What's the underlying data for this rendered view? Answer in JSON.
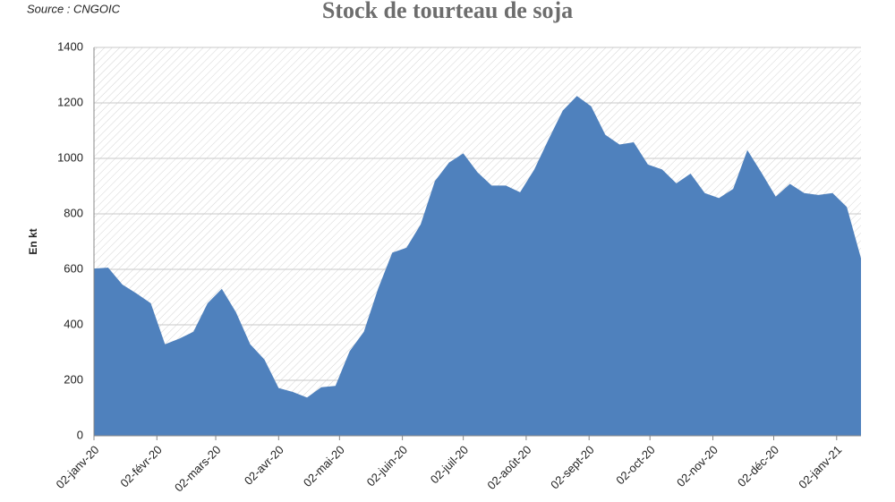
{
  "chart_data": {
    "type": "area",
    "title": "Stock de tourteau de soja",
    "source": "Source : CNGOIC",
    "y_label": "En kt",
    "x": [
      0,
      7,
      14,
      21,
      28,
      35,
      42,
      49,
      56,
      63,
      70,
      77,
      84,
      91,
      98,
      105,
      112,
      119,
      126,
      133,
      140,
      147,
      154,
      161,
      168,
      175,
      182,
      189,
      196,
      203,
      210,
      217,
      224,
      231,
      238,
      245,
      252,
      259,
      266,
      273,
      280,
      287,
      294,
      301,
      308,
      315,
      322,
      329,
      336,
      343,
      350,
      357,
      364,
      371,
      378
    ],
    "values": [
      603,
      606,
      545,
      513,
      478,
      330,
      350,
      375,
      478,
      530,
      445,
      330,
      275,
      172,
      158,
      138,
      175,
      180,
      305,
      375,
      530,
      660,
      678,
      762,
      918,
      985,
      1018,
      950,
      902,
      902,
      878,
      960,
      1068,
      1172,
      1225,
      1188,
      1085,
      1050,
      1058,
      978,
      960,
      910,
      945,
      875,
      857,
      890,
      1030,
      948,
      862,
      908,
      875,
      868,
      875,
      825,
      640
    ],
    "color": "#4f81bd",
    "xlim": [
      0,
      378
    ],
    "xticks": [
      {
        "value": 0,
        "label": "02-janv-20"
      },
      {
        "value": 31,
        "label": "02-févr-20"
      },
      {
        "value": 60,
        "label": "02-mars-20"
      },
      {
        "value": 91,
        "label": "02-avr-20"
      },
      {
        "value": 121,
        "label": "02-mai-20"
      },
      {
        "value": 152,
        "label": "02-juin-20"
      },
      {
        "value": 182,
        "label": "02-juil-20"
      },
      {
        "value": 213,
        "label": "02-août-20"
      },
      {
        "value": 244,
        "label": "02-sept-20"
      },
      {
        "value": 274,
        "label": "02-oct-20"
      },
      {
        "value": 305,
        "label": "02-nov-20"
      },
      {
        "value": 335,
        "label": "02-déc-20"
      },
      {
        "value": 366,
        "label": "02-janv-21"
      }
    ],
    "ylim": [
      0,
      1400
    ],
    "yticks": [
      0,
      200,
      400,
      600,
      800,
      1000,
      1200,
      1400
    ],
    "grid": true
  }
}
